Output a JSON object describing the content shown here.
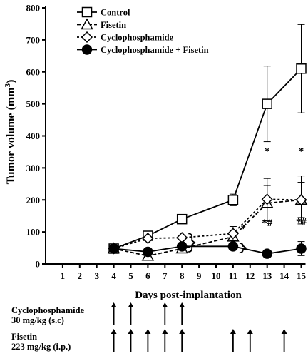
{
  "chart_data": {
    "type": "line",
    "ylabel": "Tumor volume (mm",
    "ylabel_sup": "3",
    "ylabel_close": ")",
    "xlabel": "Days post-implantation",
    "ylim": [
      0,
      800
    ],
    "yticks": [
      0,
      100,
      200,
      300,
      400,
      500,
      600,
      700,
      800
    ],
    "xlim": [
      0,
      15
    ],
    "xticks": [
      1,
      2,
      3,
      4,
      5,
      6,
      7,
      8,
      9,
      10,
      11,
      12,
      13,
      14,
      15
    ],
    "legend_position": "top-left",
    "series": [
      {
        "name": "Control",
        "marker": "square",
        "fill": "#ffffff",
        "dash": "none",
        "points": [
          {
            "x": 4,
            "y": 48,
            "err": 0
          },
          {
            "x": 6,
            "y": 88,
            "err": 0
          },
          {
            "x": 8,
            "y": 140,
            "err": 0
          },
          {
            "x": 11,
            "y": 200,
            "err": 18
          },
          {
            "x": 13,
            "y": 500,
            "err": 118
          },
          {
            "x": 15,
            "y": 610,
            "err": 138
          }
        ]
      },
      {
        "name": "Fisetin",
        "marker": "triangle",
        "fill": "#ffffff",
        "dash": "5,3",
        "points": [
          {
            "x": 4,
            "y": 48,
            "err": 0
          },
          {
            "x": 6,
            "y": 25,
            "err": 0
          },
          {
            "x": 8,
            "y": 48,
            "err": 0
          },
          {
            "x": 11,
            "y": 85,
            "err": 20
          },
          {
            "x": 13,
            "y": 190,
            "err": 55
          },
          {
            "x": 15,
            "y": 200,
            "err": 55
          }
        ]
      },
      {
        "name": "Cyclophosphamide",
        "marker": "diamond",
        "fill": "#ffffff",
        "dash": "3,3",
        "points": [
          {
            "x": 4,
            "y": 48,
            "err": 0
          },
          {
            "x": 6,
            "y": 80,
            "err": 0
          },
          {
            "x": 8,
            "y": 82,
            "err": 0
          },
          {
            "x": 11,
            "y": 95,
            "err": 22
          },
          {
            "x": 13,
            "y": 202,
            "err": 65
          },
          {
            "x": 15,
            "y": 200,
            "err": 75
          }
        ]
      },
      {
        "name": "Cyclophosphamide + Fisetin",
        "marker": "circle",
        "fill": "#000000",
        "dash": "none",
        "points": [
          {
            "x": 4,
            "y": 48,
            "err": 0
          },
          {
            "x": 6,
            "y": 38,
            "err": 0
          },
          {
            "x": 8,
            "y": 55,
            "err": 0
          },
          {
            "x": 11,
            "y": 55,
            "err": 10
          },
          {
            "x": 13,
            "y": 32,
            "err": 0
          },
          {
            "x": 15,
            "y": 48,
            "err": 22
          }
        ]
      }
    ],
    "annotations": [
      {
        "x": 13,
        "y": 342,
        "text": "*"
      },
      {
        "x": 15,
        "y": 342,
        "text": "*"
      },
      {
        "x": 13,
        "y": 118,
        "text": "*#"
      },
      {
        "x": 15,
        "y": 122,
        "text": "*#"
      },
      {
        "x": 11.6,
        "y": 100,
        "text": "*"
      }
    ],
    "brackets": [
      {
        "x": 8,
        "y_low": 38,
        "y_high": 95
      },
      {
        "x": 11,
        "y_low": 35,
        "y_high": 65
      }
    ],
    "schedule": [
      {
        "label_line1": "Cyclophosphamide",
        "label_line2": "30 mg/kg (s.c)",
        "days": [
          4,
          5,
          7,
          8
        ]
      },
      {
        "label_line1": "Fisetin",
        "label_line2": "223 mg/kg (i.p.)",
        "days": [
          4,
          5,
          6,
          7,
          8,
          11,
          12,
          14
        ]
      }
    ]
  }
}
